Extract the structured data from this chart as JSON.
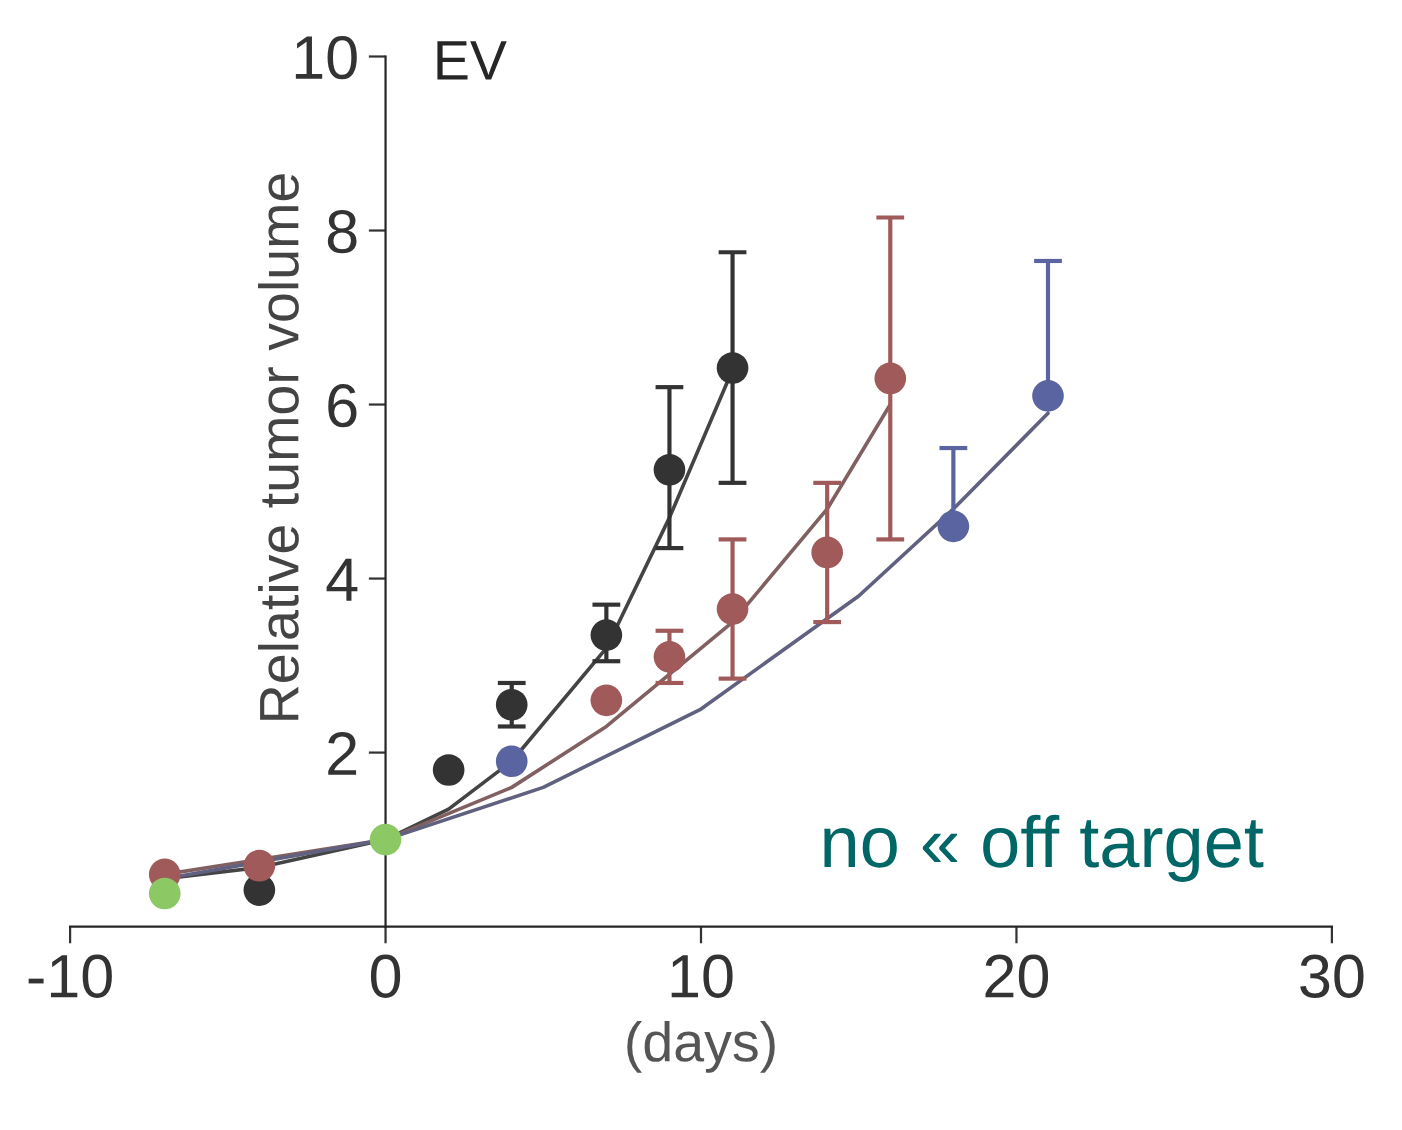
{
  "chart_data": {
    "type": "scatter",
    "title": "EV",
    "xlabel": "(days)",
    "ylabel": "Relative tumor volume",
    "xlim": [
      -10,
      30
    ],
    "xticks": [
      -10,
      0,
      10,
      20,
      30
    ],
    "ylim": [
      0,
      10
    ],
    "yticks": [
      2,
      4,
      6,
      8,
      10
    ],
    "marker": "circle",
    "grid": false,
    "legend": false,
    "series": [
      {
        "type": "line",
        "marker": "none",
        "color": "#444444",
        "x": [
          -7,
          -4,
          0,
          2,
          4,
          7,
          9,
          11
        ],
        "values": [
          0.55,
          0.68,
          1.0,
          1.35,
          1.9,
          3.2,
          4.7,
          6.4
        ]
      },
      {
        "type": "line",
        "marker": "none",
        "color": "#806060",
        "x": [
          -7,
          0,
          4,
          7,
          11,
          14,
          16
        ],
        "values": [
          0.6,
          1.0,
          1.6,
          2.3,
          3.5,
          4.8,
          6.0
        ]
      },
      {
        "type": "line",
        "marker": "none",
        "color": "#606080",
        "x": [
          -7,
          0,
          5,
          10,
          15,
          18,
          21
        ],
        "values": [
          0.55,
          1.0,
          1.6,
          2.5,
          3.8,
          4.8,
          5.9
        ]
      },
      {
        "color": "#333333",
        "x": [
          -4,
          2,
          4,
          7,
          9,
          11
        ],
        "values": [
          0.42,
          1.8,
          2.55,
          3.35,
          5.25,
          6.42
        ],
        "errors": [
          null,
          null,
          [
            2.3,
            2.8
          ],
          [
            3.05,
            3.7
          ],
          [
            4.35,
            6.2
          ],
          [
            5.1,
            7.75
          ]
        ]
      },
      {
        "color": "#a05a5a",
        "x": [
          -7,
          -4,
          7,
          9,
          11,
          14,
          16
        ],
        "values": [
          0.6,
          0.7,
          2.6,
          3.1,
          3.65,
          4.3,
          6.3
        ],
        "errors": [
          null,
          null,
          null,
          [
            2.8,
            3.4
          ],
          [
            2.85,
            4.45
          ],
          [
            3.5,
            5.1
          ],
          [
            4.45,
            8.15
          ]
        ]
      },
      {
        "color": "#5a64a0",
        "x": [
          4,
          18,
          21
        ],
        "values": [
          1.9,
          4.6,
          6.1
        ],
        "errors": [
          null,
          [
            4.6,
            5.5
          ],
          [
            6.1,
            7.65
          ]
        ]
      },
      {
        "color": "#8cc864",
        "x": [
          -7,
          0
        ],
        "values": [
          0.38,
          1.0
        ]
      }
    ],
    "annotations": [
      "no « off target"
    ]
  }
}
